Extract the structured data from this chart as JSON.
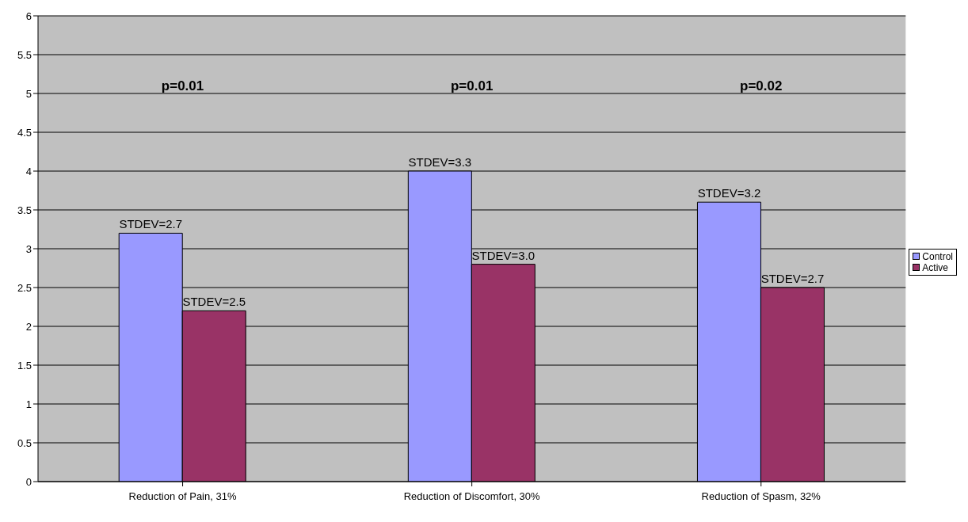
{
  "chart_data": {
    "type": "bar",
    "categories": [
      "Reduction of Pain, 31%",
      "Reduction of Discomfort, 30%",
      "Reduction of Spasm, 32%"
    ],
    "series": [
      {
        "name": "Control",
        "color": "#9999ff",
        "values": [
          3.2,
          4.0,
          3.6
        ]
      },
      {
        "name": "Active",
        "color": "#993366",
        "values": [
          2.2,
          2.8,
          2.5
        ]
      }
    ],
    "ylim": [
      0,
      6
    ],
    "yticks": [
      0,
      0.5,
      1,
      1.5,
      2,
      2.5,
      3,
      3.5,
      4,
      4.5,
      5,
      5.5,
      6
    ],
    "grid": "y",
    "legend": "right",
    "annotations": [
      "p=0.01",
      "p=0.01",
      "p=0.02",
      {
        "text": "STDEV=2.7",
        "x": "Reduction of Pain, 31%",
        "y": 3.2
      },
      {
        "text": "STDEV=2.5",
        "x": "Reduction of Pain, 31%",
        "y": 2.2
      },
      {
        "text": "STDEV=3.3",
        "x": "Reduction of Discomfort, 30%",
        "y": 4.0
      },
      {
        "text": "STDEV=3.0",
        "x": "Reduction of Discomfort, 30%",
        "y": 2.8
      },
      {
        "text": "STDEV=3.2",
        "x": "Reduction of Spasm, 32%",
        "y": 3.6
      },
      {
        "text": "STDEV=2.7",
        "x": "Reduction of Spasm, 32%",
        "y": 2.5
      }
    ]
  }
}
